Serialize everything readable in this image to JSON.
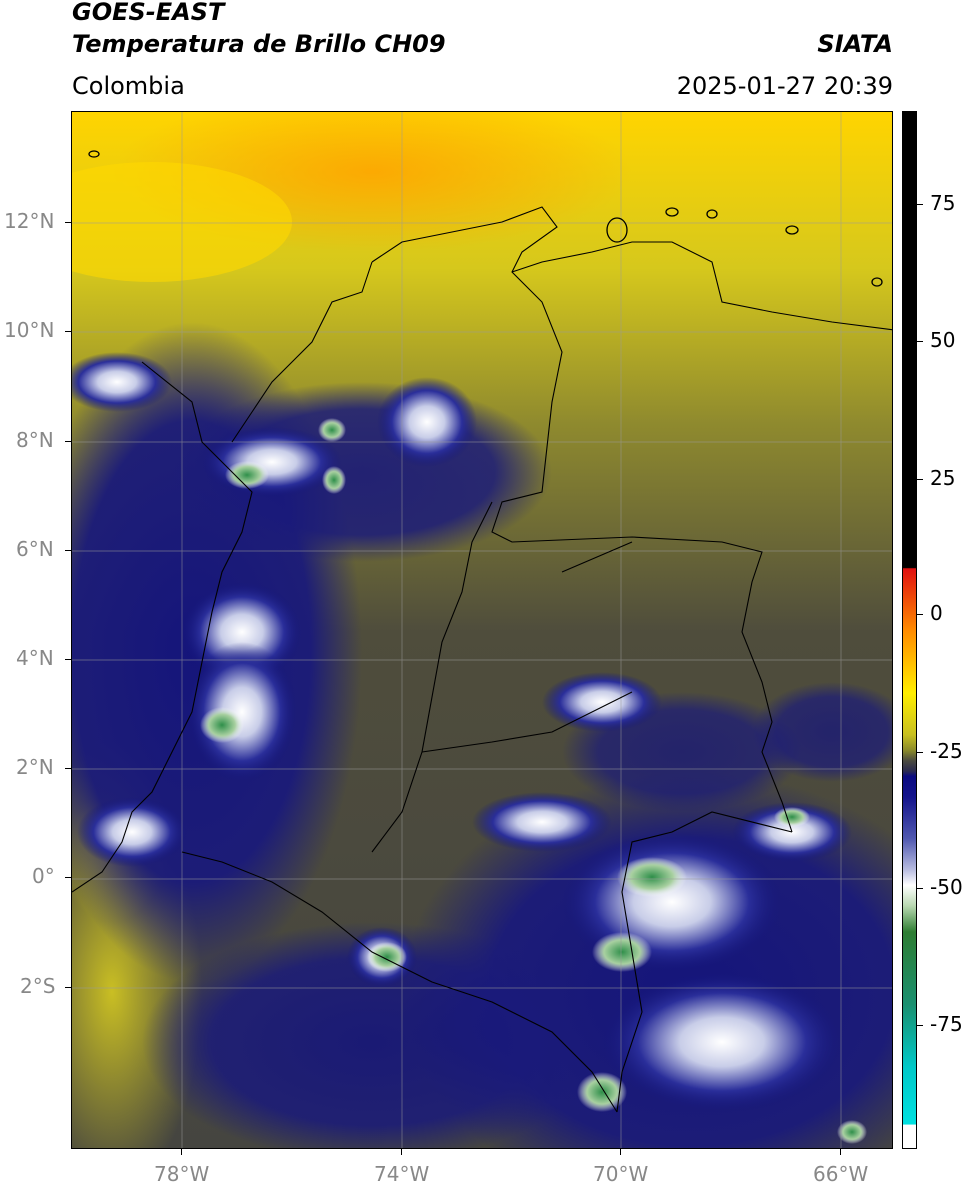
{
  "header": {
    "title_line1": "GOES-EAST",
    "title_line2": "Temperatura de Brillo CH09",
    "region": "Colombia",
    "agency": "SIATA",
    "timestamp": "2025-01-27 20:39"
  },
  "axes": {
    "latitude_labels": [
      "12°N",
      "10°N",
      "8°N",
      "6°N",
      "4°N",
      "2°N",
      "0°",
      "2°S"
    ],
    "longitude_labels": [
      "78°W",
      "74°W",
      "70°W",
      "66°W"
    ]
  },
  "colorbar": {
    "labels": [
      "75",
      "50",
      "25",
      "0",
      "-25",
      "-50",
      "-75"
    ],
    "colors": {
      "black": "#000000",
      "red": "#e01010",
      "orange": "#ff8c00",
      "yellow": "#ffee00",
      "olive": "#8a8a2a",
      "gray": "#4a4a40",
      "navy": "#0a0a80",
      "white": "#ffffff",
      "green": "#2e7d32",
      "teal": "#00c8c8"
    }
  }
}
